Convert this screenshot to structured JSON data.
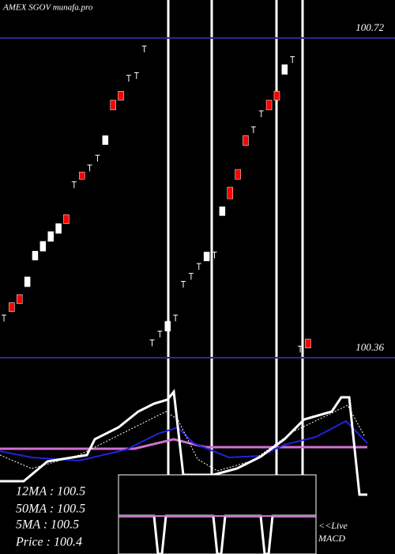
{
  "chart_data": {
    "type": "candlestick",
    "title": "AMEX  SGOV munafa.pro",
    "open": [
      100.408,
      100.422,
      100.431,
      100.44,
      100.47,
      100.48,
      100.491,
      100.5,
      100.521,
      100.558,
      100.569,
      100.577,
      100.588,
      100.6,
      100.65,
      100.66,
      100.678,
      100.681,
      100.711,
      100.38,
      100.39,
      100.39,
      100.408,
      100.446,
      100.455,
      100.466,
      100.469,
      100.479,
      100.52,
      100.552,
      100.572,
      100.61,
      100.62,
      100.638,
      100.65,
      100.66,
      100.679,
      100.699,
      100.373,
      100.381
    ],
    "close": [
      100.408,
      100.412,
      100.421,
      100.451,
      100.48,
      100.491,
      100.502,
      100.511,
      100.511,
      100.558,
      100.561,
      100.577,
      100.588,
      100.61,
      100.639,
      100.65,
      100.678,
      100.681,
      100.711,
      100.38,
      100.39,
      100.401,
      100.408,
      100.446,
      100.455,
      100.466,
      100.479,
      100.479,
      100.53,
      100.539,
      100.561,
      100.599,
      100.62,
      100.638,
      100.639,
      100.65,
      100.69,
      100.699,
      100.373,
      100.371
    ],
    "ylim": [
      100.36,
      100.72
    ],
    "yticks": [
      100.36,
      100.72
    ],
    "up_color": "#ffffff",
    "down_color": "#ff0000",
    "grid": true,
    "labels": [
      "12MA : 100.5",
      "50MA : 100.5",
      "5MA : 100.5",
      "Price   : 100.4"
    ],
    "live": "<<Live",
    "macd": "MACD"
  }
}
